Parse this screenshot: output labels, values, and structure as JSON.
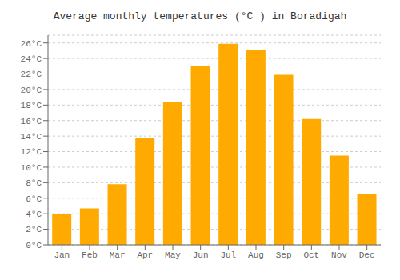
{
  "chart_data": {
    "type": "bar",
    "title": "Average monthly temperatures (°C ) in Boradigah",
    "categories": [
      "Jan",
      "Feb",
      "Mar",
      "Apr",
      "May",
      "Jun",
      "Jul",
      "Aug",
      "Sep",
      "Oct",
      "Nov",
      "Dec"
    ],
    "values": [
      4.0,
      4.7,
      7.8,
      13.7,
      18.4,
      23.0,
      25.9,
      25.1,
      21.9,
      16.2,
      11.5,
      6.5
    ],
    "color": "#FFAA00",
    "ylim": [
      0,
      27
    ],
    "yticks": [
      {
        "value": 0,
        "label": "0°C"
      },
      {
        "value": 2,
        "label": "2°C"
      },
      {
        "value": 4,
        "label": "4°C"
      },
      {
        "value": 6,
        "label": "6°C"
      },
      {
        "value": 8,
        "label": "8°C"
      },
      {
        "value": 10,
        "label": "10°C"
      },
      {
        "value": 12,
        "label": "12°C"
      },
      {
        "value": 14,
        "label": "14°C"
      },
      {
        "value": 16,
        "label": "16°C"
      },
      {
        "value": 18,
        "label": "18°C"
      },
      {
        "value": 20,
        "label": "20°C"
      },
      {
        "value": 22,
        "label": "22°C"
      },
      {
        "value": 24,
        "label": "24°C"
      },
      {
        "value": 26,
        "label": "26°C"
      }
    ],
    "grid": true
  }
}
